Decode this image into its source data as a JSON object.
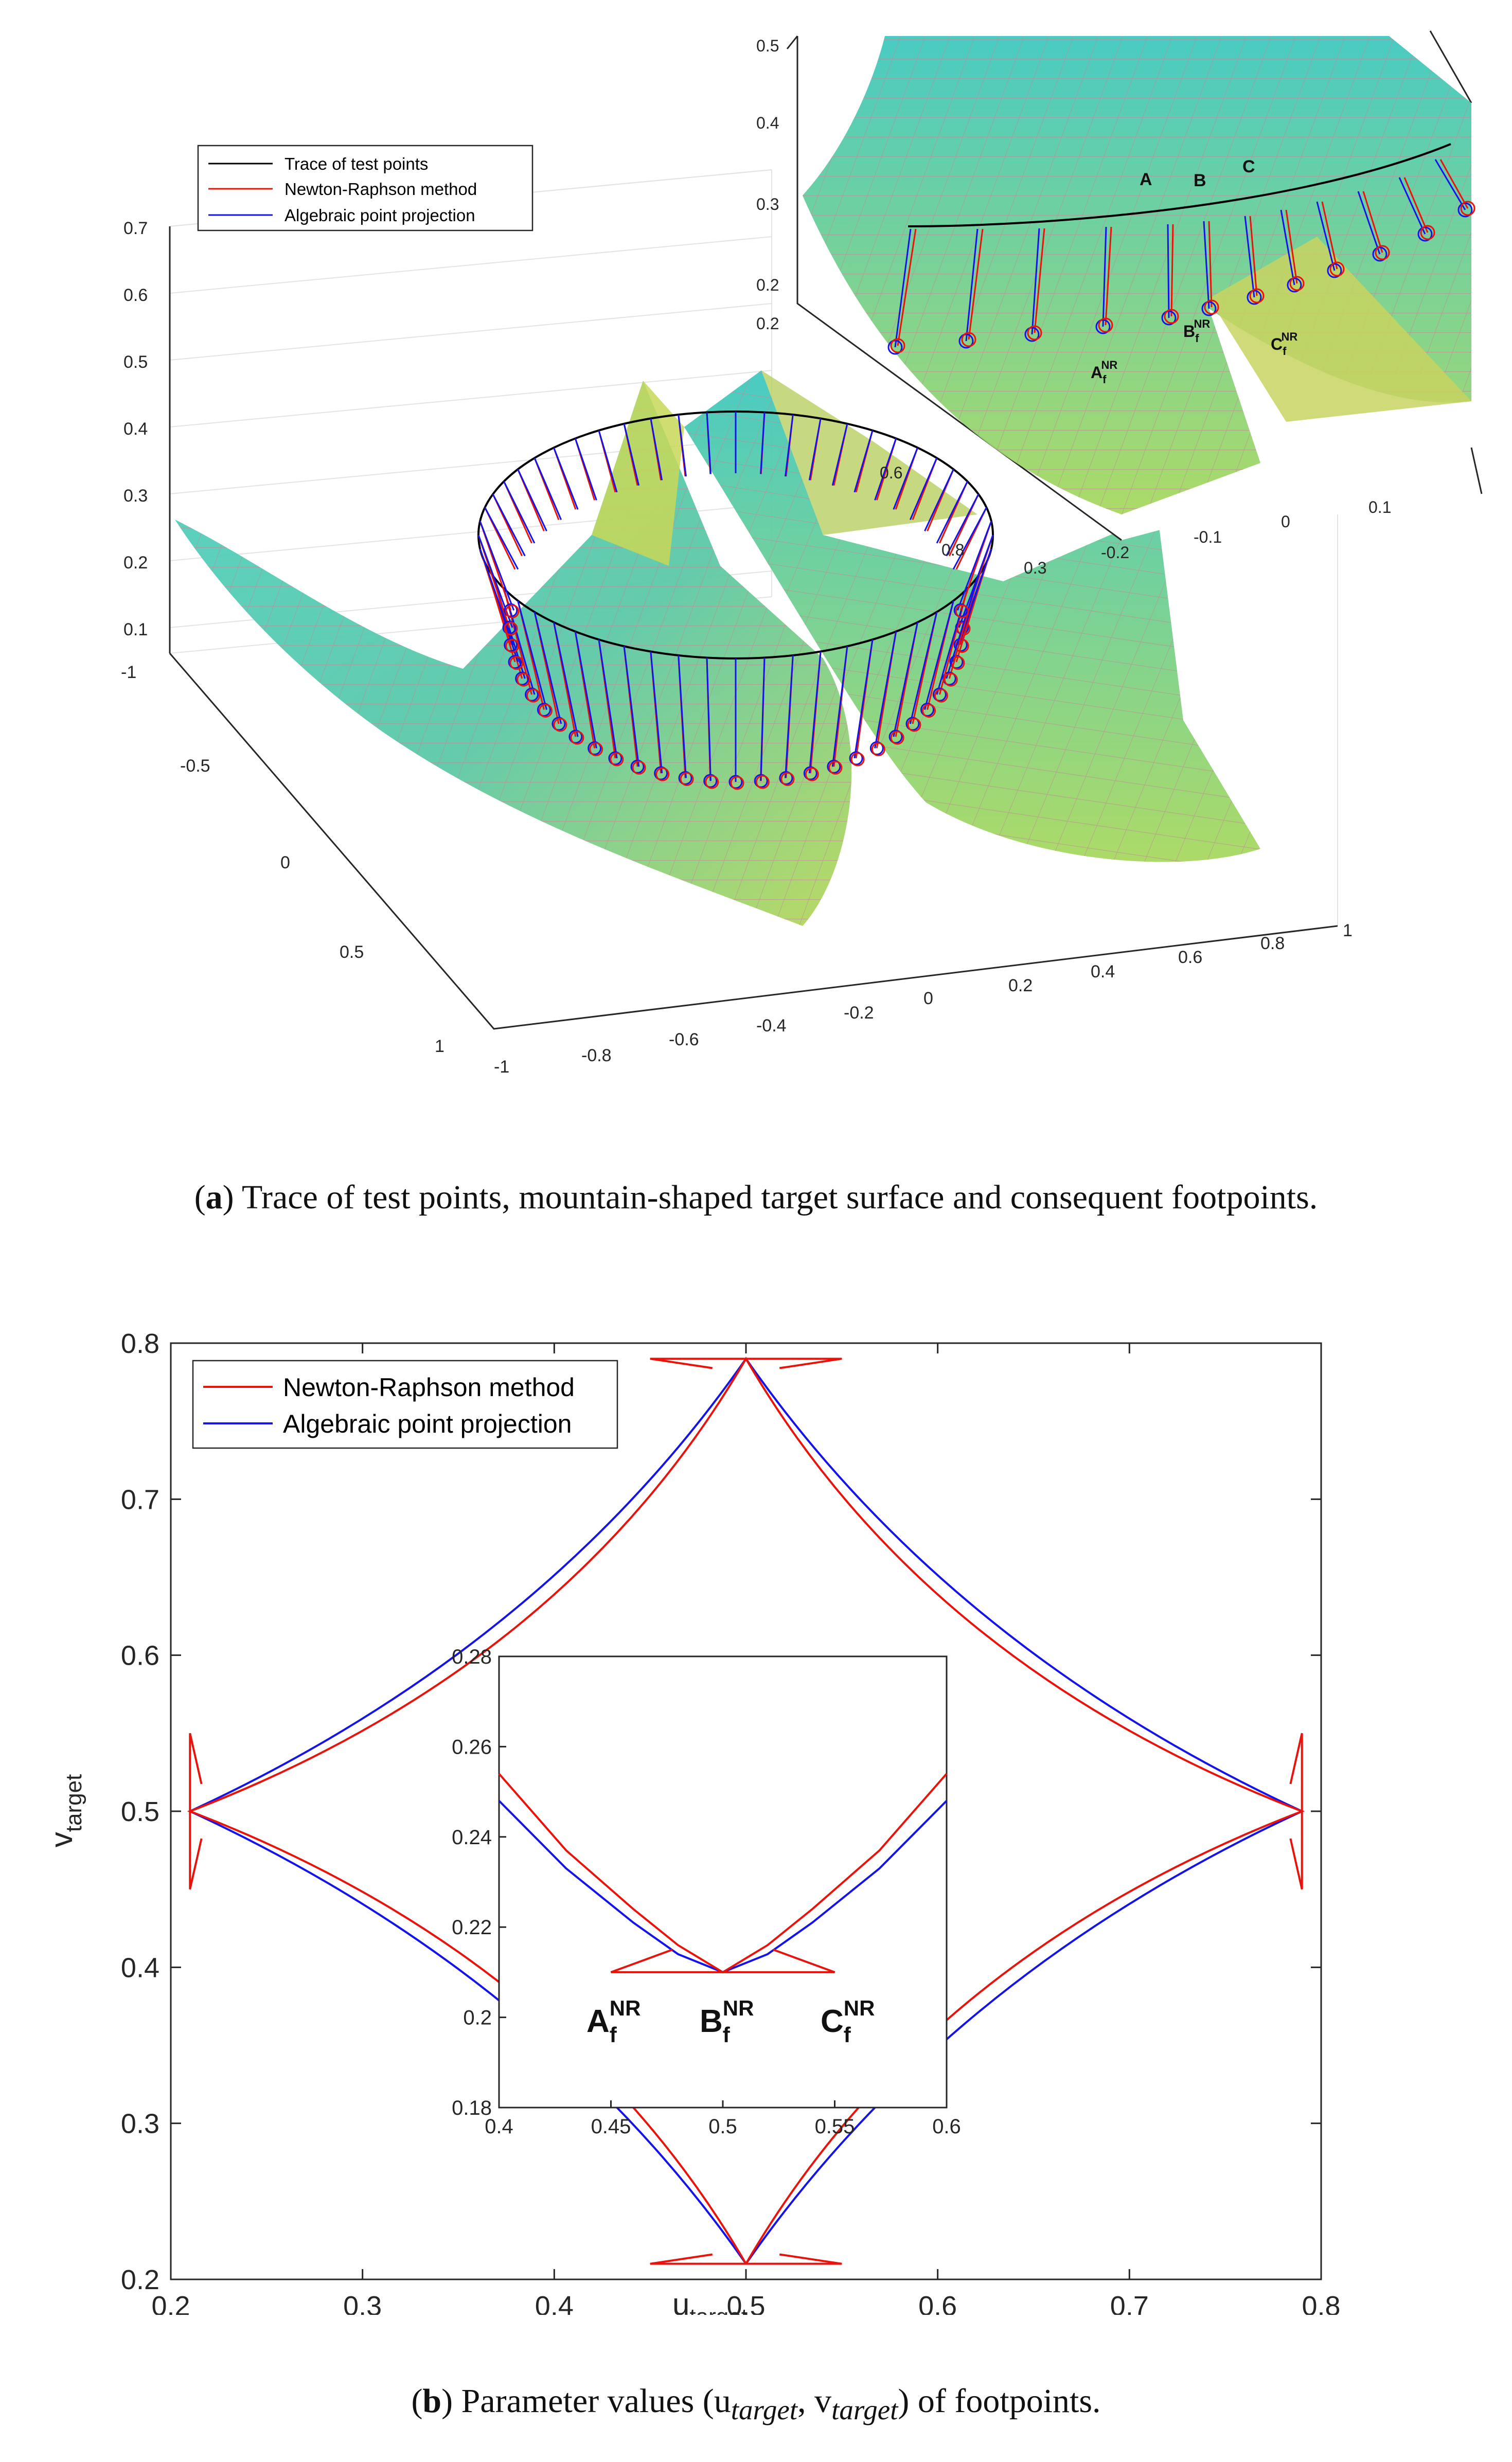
{
  "chart_data": [
    {
      "id": "a",
      "type": "surface3d",
      "legend": [
        "Trace of test points",
        "Newton-Raphson method",
        "Algebraic point projection"
      ],
      "series_colors": [
        "#000000",
        "#e8140c",
        "#1414e8"
      ],
      "z_ticks": [
        "0.1",
        "0.2",
        "0.3",
        "0.4",
        "0.5",
        "0.6",
        "0.7"
      ],
      "y_ticks": [
        "-1",
        "-0.5",
        "0",
        "0.5",
        "1"
      ],
      "x_ticks": [
        "-1",
        "-0.8",
        "-0.6",
        "-0.4",
        "-0.2",
        "0",
        "0.2",
        "0.4",
        "0.6",
        "0.8",
        "1"
      ],
      "inner_ticks": [
        "0.6",
        "0.8",
        "0.3",
        "-0.2",
        "-0.1",
        "0",
        "0.1"
      ],
      "inset": {
        "z_ticks": [
          "0.5",
          "0.4",
          "0.3",
          "0.2"
        ],
        "y_ticks": [
          "0.2"
        ],
        "point_labels": [
          "A",
          "B",
          "C"
        ],
        "footpoint_labels": [
          {
            "base": "A",
            "sub": "f",
            "sup": "NR"
          },
          {
            "base": "B",
            "sub": "f",
            "sup": "NR"
          },
          {
            "base": "C",
            "sub": "f",
            "sup": "NR"
          }
        ]
      }
    },
    {
      "id": "b",
      "type": "line",
      "xlabel_base": "u",
      "xlabel_sub": "target",
      "ylabel_base": "v",
      "ylabel_sub": "target",
      "xlim": [
        0.2,
        0.8
      ],
      "ylim": [
        0.2,
        0.8
      ],
      "x_ticks": [
        "0.2",
        "0.3",
        "0.4",
        "0.5",
        "0.6",
        "0.7",
        "0.8"
      ],
      "y_ticks": [
        "0.2",
        "0.3",
        "0.4",
        "0.5",
        "0.6",
        "0.7",
        "0.8"
      ],
      "series": [
        {
          "name": "Newton-Raphson method",
          "color": "#e8140c",
          "vertex_min": 0.21,
          "vertex_max": 0.79,
          "shape": "diamond-with-cusps",
          "cusp_tips": [
            [
              0.45,
              0.21
            ],
            [
              0.55,
              0.21
            ],
            [
              0.45,
              0.79
            ],
            [
              0.55,
              0.79
            ],
            [
              0.21,
              0.45
            ],
            [
              0.21,
              0.55
            ],
            [
              0.79,
              0.45
            ],
            [
              0.79,
              0.55
            ]
          ]
        },
        {
          "name": "Algebraic point projection",
          "color": "#1414e8",
          "vertex_min": 0.21,
          "vertex_max": 0.79,
          "shape": "diamond"
        }
      ],
      "inset": {
        "xlim": [
          0.4,
          0.6
        ],
        "ylim": [
          0.18,
          0.28
        ],
        "x_ticks": [
          "0.4",
          "0.45",
          "0.5",
          "0.55",
          "0.6"
        ],
        "y_ticks": [
          "0.18",
          "0.2",
          "0.22",
          "0.24",
          "0.26",
          "0.28"
        ],
        "nr_points": [
          [
            0.4,
            0.254
          ],
          [
            0.43,
            0.237
          ],
          [
            0.46,
            0.224
          ],
          [
            0.48,
            0.216
          ],
          [
            0.5,
            0.21
          ],
          [
            0.52,
            0.216
          ],
          [
            0.54,
            0.224
          ],
          [
            0.57,
            0.237
          ],
          [
            0.6,
            0.254
          ]
        ],
        "nr_cusp_tips": [
          [
            0.45,
            0.21
          ],
          [
            0.55,
            0.21
          ]
        ],
        "alg_points": [
          [
            0.4,
            0.248
          ],
          [
            0.43,
            0.233
          ],
          [
            0.46,
            0.221
          ],
          [
            0.48,
            0.214
          ],
          [
            0.5,
            0.21
          ],
          [
            0.52,
            0.214
          ],
          [
            0.54,
            0.221
          ],
          [
            0.57,
            0.233
          ],
          [
            0.6,
            0.248
          ]
        ],
        "footpoint_labels": [
          {
            "base": "A",
            "sub": "f",
            "sup": "NR"
          },
          {
            "base": "B",
            "sub": "f",
            "sup": "NR"
          },
          {
            "base": "C",
            "sub": "f",
            "sup": "NR"
          }
        ]
      }
    }
  ],
  "captions": {
    "a_label": "a",
    "a_text": "Trace of test points, mountain-shaped target surface and consequent footpoints.",
    "b_label": "b",
    "b_text": "Parameter values (u",
    "b_sub1": "target",
    "b_mid": ", v",
    "b_sub2": "target",
    "b_end": ") of footpoints."
  }
}
